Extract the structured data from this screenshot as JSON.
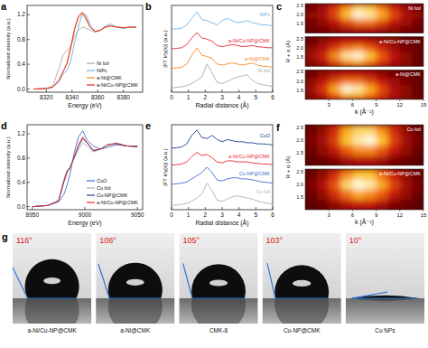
{
  "chart_data": [
    {
      "type": "line",
      "title": "a",
      "xlabel": "Energy (eV)",
      "ylabel": "Normalized intensity (a.u.)",
      "x": [
        8310,
        8320,
        8325,
        8330,
        8333,
        8336,
        8339,
        8342,
        8345,
        8348,
        8351,
        8354,
        8358,
        8362,
        8366,
        8370,
        8375,
        8380,
        8385,
        8390
      ],
      "xlim": [
        8305,
        8395
      ],
      "xticks": [
        8320,
        8340,
        8360,
        8380
      ],
      "ylim": [
        -0.05,
        1.35
      ],
      "yticks": [
        {
          "value": 0,
          "label": "0.0"
        },
        0.4,
        0.8,
        1.2
      ],
      "legend": "lower right",
      "series": [
        {
          "name": "Ni foil",
          "color": "#aaaaaa",
          "values": [
            0,
            0.01,
            0.05,
            0.35,
            0.55,
            0.62,
            0.7,
            0.85,
            0.95,
            1.0,
            0.98,
            0.95,
            0.92,
            0.95,
            1.0,
            1.02,
            1.0,
            0.98,
            1.0,
            1.0
          ]
        },
        {
          "name": "NiPc",
          "color": "#6fb3e8",
          "values": [
            0,
            0.01,
            0.03,
            0.12,
            0.25,
            0.3,
            0.45,
            0.75,
            1.0,
            1.22,
            1.2,
            1.05,
            0.92,
            0.95,
            1.02,
            1.05,
            1.0,
            0.98,
            1.0,
            1.0
          ]
        },
        {
          "name": "a-Ni@CMK",
          "color": "#f08a24",
          "values": [
            0,
            0.01,
            0.03,
            0.15,
            0.28,
            0.4,
            0.65,
            0.95,
            1.15,
            1.22,
            1.12,
            1.0,
            0.93,
            0.95,
            1.0,
            1.02,
            1.0,
            0.99,
            1.0,
            1.0
          ]
        },
        {
          "name": "a-Ni/Cu-NP@CMK",
          "color": "#e8262a",
          "values": [
            0,
            0.01,
            0.03,
            0.15,
            0.28,
            0.42,
            0.68,
            0.98,
            1.18,
            1.24,
            1.14,
            1.0,
            0.93,
            0.95,
            1.0,
            1.02,
            1.0,
            0.99,
            1.0,
            1.0
          ]
        }
      ]
    },
    {
      "type": "line",
      "title": "b",
      "xlabel": "Radial distance (Å)",
      "ylabel": "|FT k³χ(k)| (a.u.)",
      "x": [
        0,
        0.3,
        0.6,
        0.9,
        1.2,
        1.5,
        1.8,
        2.1,
        2.4,
        2.7,
        3,
        3.3,
        3.6,
        3.9,
        4.2,
        4.5,
        4.8,
        5.1,
        5.4,
        5.7,
        6
      ],
      "xlim": [
        0,
        6
      ],
      "xticks": [
        0,
        1,
        2,
        3,
        4,
        5,
        6
      ],
      "ylim": [
        0,
        4
      ],
      "tick_labels": "x",
      "series": [
        {
          "name": "Ni foil",
          "color": "#aaaaaa",
          "values": [
            0.2,
            0.22,
            0.25,
            0.3,
            0.4,
            0.55,
            0.7,
            1.3,
            0.9,
            0.45,
            0.4,
            0.5,
            0.6,
            0.7,
            0.75,
            0.8,
            0.55,
            0.4,
            0.35,
            0.3,
            0.28
          ]
        },
        {
          "name": "a-Ni@CMK",
          "color": "#f08a24",
          "values": [
            1.1,
            1.12,
            1.15,
            1.3,
            1.7,
            2.05,
            1.7,
            1.65,
            1.55,
            1.3,
            1.25,
            1.3,
            1.35,
            1.3,
            1.25,
            1.3,
            1.35,
            1.25,
            1.2,
            1.18,
            1.15
          ]
        },
        {
          "name": "a-Ni/Cu-NP@CMK",
          "color": "#e8262a",
          "values": [
            2.0,
            2.02,
            2.05,
            2.2,
            2.5,
            2.75,
            2.5,
            2.45,
            2.35,
            2.15,
            2.1,
            2.15,
            2.2,
            2.15,
            2.1,
            2.12,
            2.15,
            2.1,
            2.08,
            2.05,
            2.05
          ]
        },
        {
          "name": "NiPc",
          "color": "#6fb3e8",
          "values": [
            2.9,
            2.92,
            2.95,
            3.1,
            3.4,
            3.7,
            3.35,
            3.3,
            3.2,
            3.1,
            3.3,
            3.4,
            3.3,
            3.2,
            3.25,
            3.3,
            3.2,
            3.15,
            3.1,
            3.1,
            3.05
          ]
        }
      ]
    },
    {
      "type": "heatmap",
      "title": "c",
      "xlabel": "k (Å⁻¹)",
      "ylabel": "R + α (Å)",
      "x": [
        0.75,
        2.25,
        3.75,
        5.25,
        6.75,
        8.25,
        9.75,
        11.25,
        12.75,
        14.25
      ],
      "y": [
        1.2,
        1.6,
        2.0,
        2.4
      ],
      "xlim": [
        0,
        15
      ],
      "xticks": [
        3,
        6,
        9,
        12,
        15
      ],
      "ylim": [
        1.0,
        2.6
      ],
      "yticks": [
        1.5,
        {
          "value": 2,
          "label": "2.0"
        },
        2.5
      ],
      "maps": [
        {
          "name": "Ni foil",
          "values": [
            [
              0.2,
              0.25,
              0.3,
              0.35,
              0.4,
              0.4,
              0.35,
              0.3,
              0.25,
              0.2
            ],
            [
              0.25,
              0.3,
              0.45,
              0.6,
              0.7,
              0.7,
              0.6,
              0.45,
              0.35,
              0.25
            ],
            [
              0.3,
              0.4,
              0.6,
              0.85,
              1.0,
              0.95,
              0.8,
              0.6,
              0.4,
              0.3
            ],
            [
              0.25,
              0.35,
              0.55,
              0.75,
              0.9,
              0.85,
              0.7,
              0.5,
              0.35,
              0.25
            ]
          ]
        },
        {
          "name": "a-Ni/Cu-NP@CMK",
          "values": [
            [
              0.3,
              0.4,
              0.6,
              0.75,
              0.8,
              0.7,
              0.55,
              0.4,
              0.3,
              0.2
            ],
            [
              0.35,
              0.5,
              0.75,
              0.95,
              1.0,
              0.85,
              0.65,
              0.45,
              0.3,
              0.2
            ],
            [
              0.3,
              0.4,
              0.55,
              0.7,
              0.75,
              0.65,
              0.5,
              0.35,
              0.25,
              0.2
            ],
            [
              0.2,
              0.3,
              0.4,
              0.45,
              0.45,
              0.4,
              0.35,
              0.3,
              0.2,
              0.15
            ]
          ]
        },
        {
          "name": "a-Ni@CMK",
          "values": [
            [
              0.3,
              0.45,
              0.65,
              0.8,
              0.8,
              0.7,
              0.55,
              0.4,
              0.3,
              0.2
            ],
            [
              0.35,
              0.55,
              0.8,
              1.0,
              0.95,
              0.8,
              0.6,
              0.4,
              0.3,
              0.2
            ],
            [
              0.3,
              0.45,
              0.6,
              0.7,
              0.7,
              0.6,
              0.45,
              0.35,
              0.25,
              0.2
            ],
            [
              0.2,
              0.3,
              0.4,
              0.45,
              0.45,
              0.4,
              0.3,
              0.25,
              0.2,
              0.15
            ]
          ]
        }
      ]
    },
    {
      "type": "line",
      "title": "d",
      "xlabel": "Energy (eV)",
      "ylabel": "Normalized intensity (a.u.)",
      "x": [
        8950,
        8965,
        8975,
        8980,
        8983,
        8986,
        8990,
        8994,
        8998,
        9002,
        9008,
        9015,
        9022,
        9030,
        9040,
        9050
      ],
      "xlim": [
        8945,
        9055
      ],
      "xticks": [
        8950,
        9000,
        9050
      ],
      "ylim": [
        -0.05,
        1.35
      ],
      "yticks": [
        {
          "value": 0,
          "label": "0.0"
        },
        0.4,
        0.8,
        1.2
      ],
      "legend": "lower right",
      "series": [
        {
          "name": "CuO",
          "color": "#3d6fd0",
          "values": [
            0,
            0.02,
            0.08,
            0.2,
            0.35,
            0.55,
            0.9,
            1.15,
            1.25,
            1.1,
            1.0,
            0.95,
            0.98,
            1.02,
            1.0,
            1.0
          ]
        },
        {
          "name": "Cu foil",
          "color": "#b0b0b0",
          "values": [
            0,
            0.02,
            0.1,
            0.45,
            0.6,
            0.65,
            0.8,
            0.95,
            1.05,
            1.0,
            0.9,
            0.95,
            1.02,
            1.05,
            1.0,
            0.98
          ]
        },
        {
          "name": "Cu-NP@CMK",
          "color": "#1b3f8f",
          "values": [
            0,
            0.02,
            0.1,
            0.42,
            0.58,
            0.65,
            0.82,
            1.0,
            1.12,
            1.05,
            0.92,
            0.95,
            1.02,
            1.04,
            1.0,
            0.99
          ]
        },
        {
          "name": "a-Ni/Cu-NP@CMK",
          "color": "#e8262a",
          "values": [
            0,
            0.02,
            0.1,
            0.4,
            0.56,
            0.64,
            0.83,
            1.02,
            1.15,
            1.06,
            0.93,
            0.95,
            1.02,
            1.04,
            1.0,
            0.99
          ]
        }
      ]
    },
    {
      "type": "line",
      "title": "e",
      "xlabel": "Radial distance (Å)",
      "ylabel": "|FT k³χ(k)| (a.u.)",
      "x": [
        0,
        0.3,
        0.6,
        0.9,
        1.2,
        1.5,
        1.8,
        2.1,
        2.4,
        2.7,
        3,
        3.3,
        3.6,
        3.9,
        4.2,
        4.5,
        4.8,
        5.1,
        5.4,
        5.7,
        6
      ],
      "xlim": [
        0,
        6
      ],
      "xticks": [
        0,
        1,
        2,
        3,
        4,
        5,
        6
      ],
      "ylim": [
        0,
        4
      ],
      "tick_labels": "x",
      "series": [
        {
          "name": "Cu foil",
          "color": "#b0b0b0",
          "values": [
            0.2,
            0.22,
            0.25,
            0.3,
            0.4,
            0.55,
            0.75,
            1.25,
            0.9,
            0.45,
            0.4,
            0.5,
            0.6,
            0.65,
            0.6,
            0.55,
            0.5,
            0.4,
            0.35,
            0.3,
            0.28
          ]
        },
        {
          "name": "Cu-NP@CMK",
          "color": "#3d6fd0",
          "values": [
            1.2,
            1.22,
            1.25,
            1.3,
            1.45,
            1.6,
            1.75,
            2.0,
            1.75,
            1.4,
            1.35,
            1.45,
            1.5,
            1.5,
            1.45,
            1.45,
            1.4,
            1.35,
            1.3,
            1.28,
            1.25
          ]
        },
        {
          "name": "a-Ni/Cu-NP@CMK",
          "color": "#e8262a",
          "values": [
            2.1,
            2.12,
            2.15,
            2.25,
            2.5,
            2.7,
            2.55,
            2.6,
            2.45,
            2.25,
            2.2,
            2.3,
            2.3,
            2.25,
            2.25,
            2.25,
            2.2,
            2.18,
            2.15,
            2.15,
            2.12
          ]
        },
        {
          "name": "CuO",
          "color": "#1b3f8f",
          "values": [
            2.9,
            2.92,
            2.95,
            3.1,
            3.5,
            3.75,
            3.4,
            3.35,
            3.5,
            3.3,
            3.2,
            3.3,
            3.25,
            3.2,
            3.2,
            3.15,
            3.15,
            3.1,
            3.1,
            3.08,
            3.05
          ]
        }
      ]
    },
    {
      "type": "heatmap",
      "title": "f",
      "xlabel": "k (Å⁻¹)",
      "ylabel": "R + α (Å)",
      "x": [
        0.75,
        2.25,
        3.75,
        5.25,
        6.75,
        8.25,
        9.75,
        11.25,
        12.75,
        14.25
      ],
      "y": [
        1.2,
        1.6,
        2.0,
        2.4
      ],
      "xlim": [
        0,
        15
      ],
      "xticks": [
        3,
        6,
        9,
        12,
        15
      ],
      "ylim": [
        1.0,
        2.6
      ],
      "yticks": [
        1.5,
        {
          "value": 2,
          "label": "2.0"
        },
        2.5
      ],
      "maps": [
        {
          "name": "Cu foil",
          "values": [
            [
              0.2,
              0.25,
              0.3,
              0.4,
              0.45,
              0.45,
              0.4,
              0.3,
              0.25,
              0.2
            ],
            [
              0.25,
              0.35,
              0.5,
              0.65,
              0.75,
              0.75,
              0.65,
              0.5,
              0.35,
              0.25
            ],
            [
              0.3,
              0.4,
              0.6,
              0.85,
              0.95,
              1.0,
              0.85,
              0.6,
              0.4,
              0.3
            ],
            [
              0.25,
              0.35,
              0.55,
              0.8,
              0.9,
              0.9,
              0.75,
              0.55,
              0.35,
              0.25
            ]
          ]
        },
        {
          "name": "a-Ni/Cu-NP@CMK",
          "values": [
            [
              0.2,
              0.25,
              0.35,
              0.45,
              0.5,
              0.5,
              0.4,
              0.3,
              0.25,
              0.2
            ],
            [
              0.25,
              0.35,
              0.55,
              0.7,
              0.8,
              0.75,
              0.65,
              0.5,
              0.35,
              0.25
            ],
            [
              0.3,
              0.45,
              0.65,
              0.9,
              1.0,
              0.95,
              0.8,
              0.6,
              0.4,
              0.3
            ],
            [
              0.25,
              0.35,
              0.55,
              0.75,
              0.85,
              0.85,
              0.7,
              0.5,
              0.35,
              0.25
            ]
          ]
        }
      ]
    },
    {
      "type": "contact_angle",
      "title": "g",
      "categories": [
        "a-Ni/Cu-NP@CMK",
        "a-Ni@CMK",
        "CMK-8",
        "Cu-NP@CMK",
        "Cu NPs"
      ],
      "values": [
        116,
        108,
        105,
        103,
        10
      ],
      "value_labels": [
        "116°",
        "108°",
        "105°",
        "103°",
        "10°"
      ],
      "data_labels": true
    }
  ]
}
